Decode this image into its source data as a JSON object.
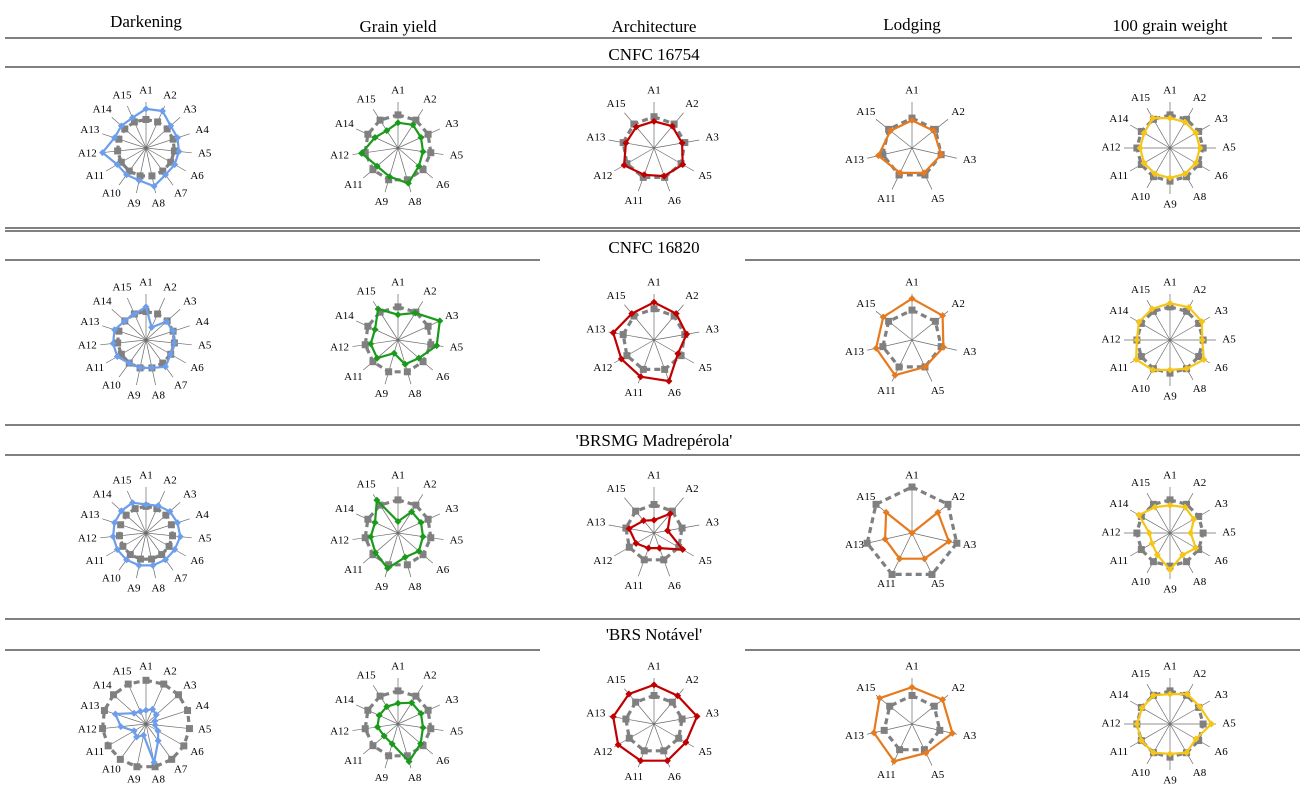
{
  "columns": [
    "Darkening",
    "Grain yield",
    "Architecture",
    "Lodging",
    "100 grain weight"
  ],
  "column_colors": [
    "#6d9eeb",
    "#1a9a1a",
    "#c00000",
    "#e67a1e",
    "#f5c518"
  ],
  "reference_color": "#808080",
  "chart_data": [
    {
      "type": "radar",
      "group": "CNFC 16754",
      "panels": [
        {
          "column": "Darkening",
          "axes": [
            "A1",
            "A2",
            "A3",
            "A4",
            "A5",
            "A6",
            "A7",
            "A8",
            "A9",
            "A10",
            "A11",
            "A12",
            "A13",
            "A14",
            "A15"
          ],
          "series": [
            {
              "values": [
                0.85,
                0.88,
                0.72,
                0.72,
                0.72,
                0.72,
                0.72,
                0.85,
                0.72,
                0.72,
                0.72,
                0.95,
                0.72,
                0.72,
                0.72
              ]
            },
            {
              "values": [
                0.62,
                0.62,
                0.62,
                0.62,
                0.62,
                0.62,
                0.62,
                0.62,
                0.62,
                0.62,
                0.62,
                0.62,
                0.62,
                0.62,
                0.62
              ]
            }
          ]
        },
        {
          "column": "Grain yield",
          "axes": [
            "A1",
            "A2",
            "A3",
            "A5",
            "A6",
            "A8",
            "A9",
            "A11",
            "A12",
            "A14",
            "A15"
          ],
          "series": [
            {
              "values": [
                0.55,
                0.6,
                0.55,
                0.55,
                0.6,
                0.8,
                0.65,
                0.6,
                0.8,
                0.55,
                0.45
              ]
            },
            {
              "values": [
                0.72,
                0.72,
                0.72,
                0.72,
                0.72,
                0.72,
                0.72,
                0.72,
                0.72,
                0.72,
                0.72
              ]
            }
          ]
        },
        {
          "column": "Architecture",
          "axes": [
            "A1",
            "A2",
            "A3",
            "A5",
            "A6",
            "A11",
            "A12",
            "A13",
            "A15"
          ],
          "series": [
            {
              "values": [
                0.58,
                0.62,
                0.62,
                0.72,
                0.65,
                0.62,
                0.75,
                0.62,
                0.6
              ]
            },
            {
              "values": [
                0.68,
                0.68,
                0.68,
                0.68,
                0.68,
                0.68,
                0.68,
                0.68,
                0.68
              ]
            }
          ]
        },
        {
          "column": "Lodging",
          "axes": [
            "A1",
            "A2",
            "A3",
            "A5",
            "A11",
            "A13",
            "A15"
          ],
          "series": [
            {
              "values": [
                0.6,
                0.6,
                0.65,
                0.6,
                0.6,
                0.75,
                0.6
              ]
            },
            {
              "values": [
                0.65,
                0.65,
                0.65,
                0.65,
                0.65,
                0.65,
                0.65
              ]
            }
          ]
        },
        {
          "column": "100 grain weight",
          "axes": [
            "A1",
            "A2",
            "A3",
            "A5",
            "A6",
            "A8",
            "A9",
            "A10",
            "A11",
            "A12",
            "A14",
            "A15"
          ],
          "series": [
            {
              "values": [
                0.65,
                0.65,
                0.65,
                0.65,
                0.65,
                0.65,
                0.65,
                0.65,
                0.65,
                0.65,
                0.65,
                0.75
              ]
            },
            {
              "values": [
                0.72,
                0.72,
                0.72,
                0.72,
                0.72,
                0.72,
                0.72,
                0.72,
                0.72,
                0.72,
                0.72,
                0.72
              ]
            }
          ]
        }
      ]
    },
    {
      "type": "radar",
      "group": "CNFC 16820",
      "panels": [
        {
          "column": "Darkening",
          "axes": [
            "A1",
            "A2",
            "A3",
            "A4",
            "A5",
            "A6",
            "A7",
            "A8",
            "A9",
            "A10",
            "A11",
            "A12",
            "A13",
            "A14",
            "A15"
          ],
          "series": [
            {
              "values": [
                0.72,
                0.3,
                0.6,
                0.62,
                0.62,
                0.62,
                0.72,
                0.62,
                0.62,
                0.62,
                0.72,
                0.72,
                0.72,
                0.62,
                0.62
              ]
            },
            {
              "values": [
                0.62,
                0.62,
                0.62,
                0.62,
                0.62,
                0.62,
                0.62,
                0.62,
                0.62,
                0.62,
                0.62,
                0.62,
                0.62,
                0.62,
                0.62
              ]
            }
          ]
        },
        {
          "column": "Grain yield",
          "axes": [
            "A1",
            "A2",
            "A3",
            "A5",
            "A6",
            "A8",
            "A9",
            "A11",
            "A12",
            "A14",
            "A15"
          ],
          "series": [
            {
              "values": [
                0.55,
                0.7,
                1.0,
                0.85,
                0.6,
                0.55,
                0.3,
                0.6,
                0.6,
                0.55,
                0.8
              ]
            },
            {
              "values": [
                0.72,
                0.72,
                0.72,
                0.72,
                0.72,
                0.72,
                0.72,
                0.72,
                0.72,
                0.72,
                0.72
              ]
            }
          ]
        },
        {
          "column": "Architecture",
          "axes": [
            "A1",
            "A2",
            "A3",
            "A5",
            "A6",
            "A11",
            "A12",
            "A13",
            "A15"
          ],
          "series": [
            {
              "values": [
                0.82,
                0.75,
                0.72,
                0.6,
                0.95,
                0.85,
                0.82,
                0.9,
                0.75
              ]
            },
            {
              "values": [
                0.68,
                0.68,
                0.68,
                0.68,
                0.68,
                0.68,
                0.68,
                0.68,
                0.68
              ]
            }
          ]
        },
        {
          "column": "Lodging",
          "axes": [
            "A1",
            "A2",
            "A3",
            "A5",
            "A11",
            "A13",
            "A15"
          ],
          "series": [
            {
              "values": [
                0.9,
                0.85,
                0.7,
                0.65,
                0.85,
                0.8,
                0.8
              ]
            },
            {
              "values": [
                0.65,
                0.65,
                0.65,
                0.65,
                0.65,
                0.65,
                0.65
              ]
            }
          ]
        },
        {
          "column": "100 grain weight",
          "axes": [
            "A1",
            "A2",
            "A3",
            "A5",
            "A6",
            "A8",
            "A9",
            "A10",
            "A11",
            "A12",
            "A14",
            "A15"
          ],
          "series": [
            {
              "values": [
                0.8,
                0.82,
                0.8,
                0.7,
                0.85,
                0.72,
                0.65,
                0.75,
                0.85,
                0.72,
                0.78,
                0.78
              ]
            },
            {
              "values": [
                0.72,
                0.72,
                0.72,
                0.72,
                0.72,
                0.72,
                0.72,
                0.72,
                0.72,
                0.72,
                0.72,
                0.72
              ]
            }
          ]
        }
      ]
    },
    {
      "type": "radar",
      "group": "'BRSMG Madrepérola'",
      "panels": [
        {
          "column": "Darkening",
          "axes": [
            "A1",
            "A2",
            "A3",
            "A4",
            "A5",
            "A6",
            "A7",
            "A8",
            "A9",
            "A10",
            "A11",
            "A12",
            "A13",
            "A14",
            "A15"
          ],
          "series": [
            {
              "values": [
                0.62,
                0.65,
                0.7,
                0.72,
                0.75,
                0.72,
                0.72,
                0.72,
                0.72,
                0.72,
                0.72,
                0.72,
                0.72,
                0.72,
                0.72
              ]
            },
            {
              "values": [
                0.58,
                0.58,
                0.58,
                0.58,
                0.58,
                0.58,
                0.58,
                0.58,
                0.58,
                0.58,
                0.58,
                0.58,
                0.58,
                0.58,
                0.58
              ]
            }
          ]
        },
        {
          "column": "Grain yield",
          "axes": [
            "A1",
            "A2",
            "A3",
            "A5",
            "A6",
            "A8",
            "A9",
            "A11",
            "A12",
            "A14",
            "A15"
          ],
          "series": [
            {
              "values": [
                0.25,
                0.55,
                0.55,
                0.55,
                0.6,
                0.55,
                0.8,
                0.65,
                0.6,
                0.55,
                0.85
              ]
            },
            {
              "values": [
                0.72,
                0.72,
                0.72,
                0.72,
                0.72,
                0.72,
                0.72,
                0.72,
                0.72,
                0.72,
                0.72
              ]
            }
          ]
        },
        {
          "column": "Architecture",
          "axes": [
            "A1",
            "A2",
            "A3",
            "A5",
            "A6",
            "A11",
            "A12",
            "A13",
            "A15"
          ],
          "series": [
            {
              "values": [
                0.28,
                0.55,
                0.3,
                0.72,
                0.35,
                0.35,
                0.45,
                0.55,
                0.35
              ]
            },
            {
              "values": [
                0.62,
                0.62,
                0.62,
                0.62,
                0.62,
                0.62,
                0.62,
                0.62,
                0.62
              ]
            }
          ]
        },
        {
          "column": "Lodging",
          "axes": [
            "A1",
            "A2",
            "A3",
            "A5",
            "A11",
            "A13",
            "A15"
          ],
          "series": [
            {
              "values": [
                0.0,
                0.72,
                0.82,
                0.62,
                0.62,
                0.6,
                0.72
              ]
            },
            {
              "values": [
                1.0,
                1.0,
                1.0,
                1.0,
                1.0,
                1.0,
                1.0
              ]
            }
          ]
        },
        {
          "column": "100 grain weight",
          "axes": [
            "A1",
            "A2",
            "A3",
            "A5",
            "A6",
            "A8",
            "A9",
            "A10",
            "A11",
            "A12",
            "A14",
            "A15"
          ],
          "series": [
            {
              "values": [
                0.6,
                0.65,
                0.6,
                0.45,
                0.65,
                0.55,
                0.8,
                0.55,
                0.45,
                0.45,
                0.78,
                0.65
              ]
            },
            {
              "values": [
                0.72,
                0.72,
                0.72,
                0.72,
                0.72,
                0.72,
                0.72,
                0.72,
                0.72,
                0.72,
                0.72,
                0.72
              ]
            }
          ]
        }
      ]
    },
    {
      "type": "radar",
      "group": "'BRS Notável'",
      "panels": [
        {
          "column": "Darkening",
          "axes": [
            "A1",
            "A2",
            "A3",
            "A4",
            "A5",
            "A6",
            "A7",
            "A8",
            "A9",
            "A10",
            "A11",
            "A12",
            "A13",
            "A14",
            "A15"
          ],
          "series": [
            {
              "values": [
                0.3,
                0.35,
                0.3,
                0.2,
                0.2,
                0.3,
                0.45,
                0.85,
                0.25,
                0.35,
                0.3,
                0.55,
                0.7,
                0.35,
                0.3
              ]
            },
            {
              "values": [
                0.95,
                0.95,
                0.95,
                0.95,
                0.95,
                0.95,
                0.95,
                0.95,
                0.95,
                0.95,
                0.95,
                0.95,
                0.95,
                0.95,
                0.95
              ]
            }
          ]
        },
        {
          "column": "Grain yield",
          "axes": [
            "A1",
            "A2",
            "A3",
            "A5",
            "A6",
            "A8",
            "A9",
            "A11",
            "A12",
            "A14",
            "A15"
          ],
          "series": [
            {
              "values": [
                0.45,
                0.55,
                0.55,
                0.55,
                0.65,
                0.85,
                0.45,
                0.4,
                0.45,
                0.45,
                0.45
              ]
            },
            {
              "values": [
                0.72,
                0.72,
                0.72,
                0.72,
                0.72,
                0.72,
                0.72,
                0.72,
                0.72,
                0.72,
                0.72
              ]
            }
          ]
        },
        {
          "column": "Architecture",
          "axes": [
            "A1",
            "A2",
            "A3",
            "A5",
            "A6",
            "A11",
            "A12",
            "A13",
            "A15"
          ],
          "series": [
            {
              "values": [
                0.85,
                0.8,
                0.95,
                0.8,
                0.85,
                0.85,
                0.9,
                0.9,
                0.85
              ]
            },
            {
              "values": [
                0.62,
                0.62,
                0.62,
                0.62,
                0.62,
                0.62,
                0.62,
                0.62,
                0.62
              ]
            }
          ]
        },
        {
          "column": "Lodging",
          "axes": [
            "A1",
            "A2",
            "A3",
            "A5",
            "A11",
            "A13",
            "A15"
          ],
          "series": [
            {
              "values": [
                0.8,
                0.85,
                0.9,
                0.7,
                0.9,
                0.85,
                0.9
              ]
            },
            {
              "values": [
                0.62,
                0.62,
                0.62,
                0.62,
                0.62,
                0.62,
                0.62
              ]
            }
          ]
        },
        {
          "column": "100 grain weight",
          "axes": [
            "A1",
            "A2",
            "A3",
            "A5",
            "A6",
            "A8",
            "A9",
            "A10",
            "A11",
            "A12",
            "A14",
            "A15"
          ],
          "series": [
            {
              "values": [
                0.65,
                0.75,
                0.75,
                0.9,
                0.65,
                0.72,
                0.65,
                0.72,
                0.72,
                0.72,
                0.7,
                0.72
              ]
            },
            {
              "values": [
                0.72,
                0.72,
                0.72,
                0.72,
                0.72,
                0.72,
                0.72,
                0.72,
                0.72,
                0.72,
                0.72,
                0.72
              ]
            }
          ]
        }
      ]
    }
  ]
}
